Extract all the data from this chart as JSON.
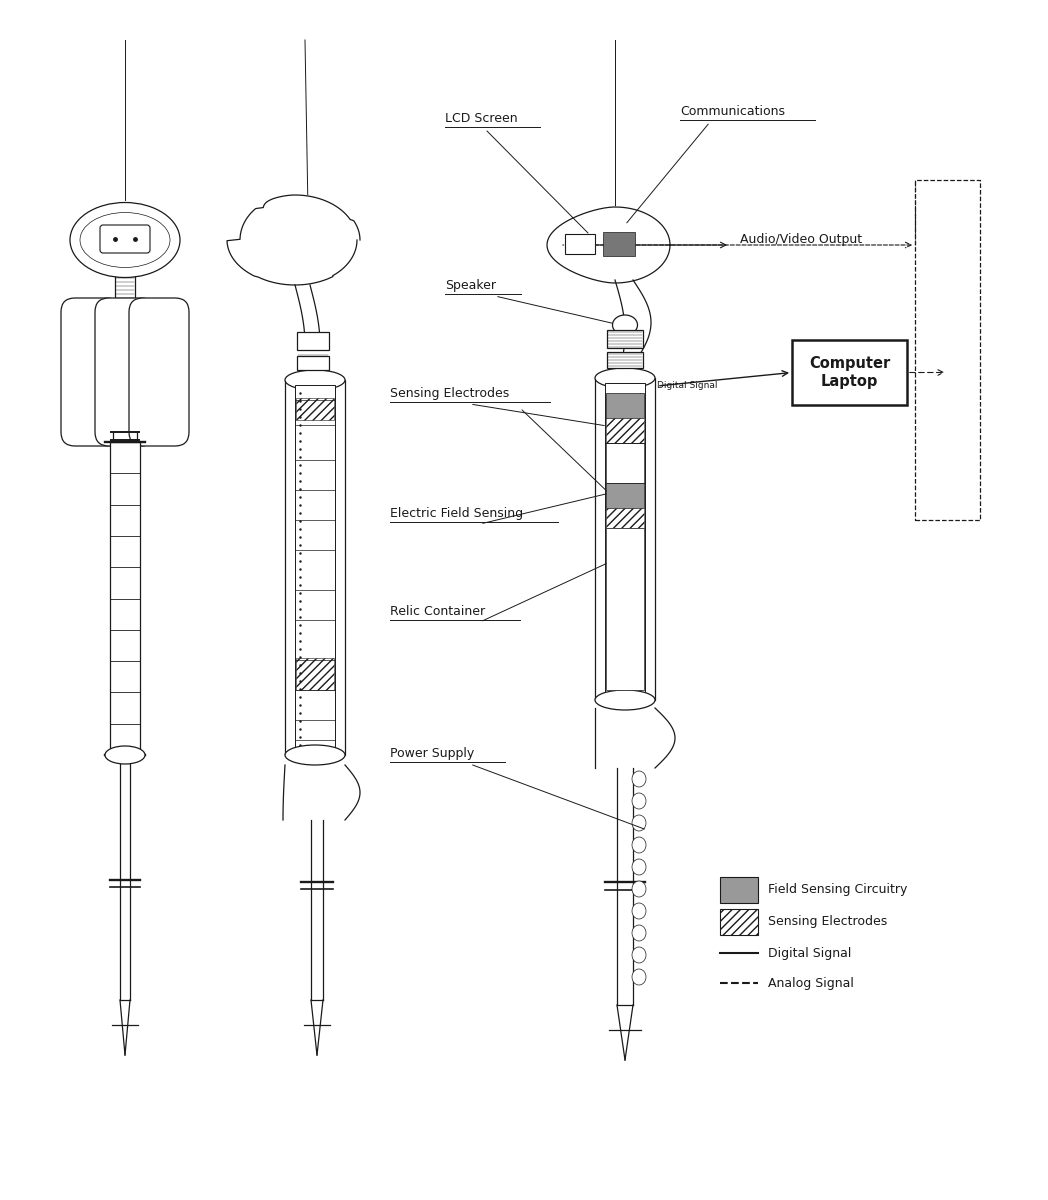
{
  "bg_color": "#ffffff",
  "line_color": "#1a1a1a",
  "s1x": 0.125,
  "s2x": 0.305,
  "s3x": 0.615,
  "labels": {
    "lcd_screen": "LCD Screen",
    "communications": "Communications",
    "audio_video": "Audio/Video Output",
    "speaker": "Speaker",
    "sensing_electrodes": "Sensing Electrodes",
    "digital_signal_label": "Digital Signal",
    "electric_field": "Electric Field Sensing",
    "relic_container": "Relic Container",
    "power_supply": "Power Supply",
    "computer_laptop": "Computer\nLaptop",
    "legend_field": "Field Sensing Circuitry",
    "legend_sensing": "Sensing Electrodes",
    "legend_digital": "Digital Signal",
    "legend_analog": "Analog Signal"
  }
}
